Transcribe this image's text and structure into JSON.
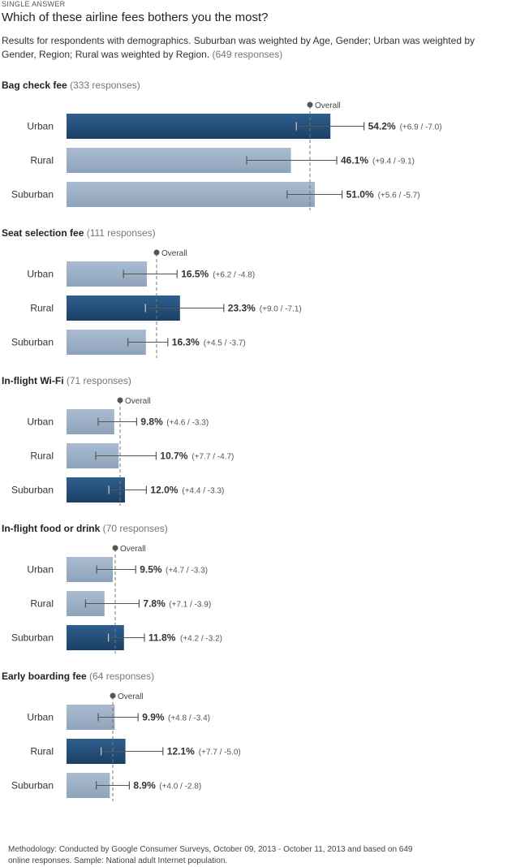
{
  "header": {
    "question_type": "SINGLE ANSWER",
    "question": "Which of these airline fees bothers you the most?",
    "subtitle": "Results for respondents with demographics. Suburban was weighted by Age, Gender; Urban was weighted by Gender, Region; Rural was weighted by Region.",
    "total_responses": "(649 responses)"
  },
  "overall_label": "Overall",
  "chart_data": {
    "type": "bar",
    "orientation": "horizontal",
    "error_bars": true,
    "grid": false,
    "groups": [
      {
        "title": "Bag check fee",
        "responses": "(333 responses)",
        "overall": 50.0,
        "highlight": "Urban",
        "rows": [
          {
            "label": "Urban",
            "value": 54.2,
            "value_text": "54.2%",
            "plus": 6.9,
            "minus": 7.0,
            "err_text": "(+6.9 / -7.0)"
          },
          {
            "label": "Rural",
            "value": 46.1,
            "value_text": "46.1%",
            "plus": 9.4,
            "minus": 9.1,
            "err_text": "(+9.4 / -9.1)"
          },
          {
            "label": "Suburban",
            "value": 51.0,
            "value_text": "51.0%",
            "plus": 5.6,
            "minus": 5.7,
            "err_text": "(+5.6 / -5.7)"
          }
        ]
      },
      {
        "title": "Seat selection fee",
        "responses": "(111 responses)",
        "overall": 18.5,
        "highlight": "Rural",
        "rows": [
          {
            "label": "Urban",
            "value": 16.5,
            "value_text": "16.5%",
            "plus": 6.2,
            "minus": 4.8,
            "err_text": "(+6.2 / -4.8)"
          },
          {
            "label": "Rural",
            "value": 23.3,
            "value_text": "23.3%",
            "plus": 9.0,
            "minus": 7.1,
            "err_text": "(+9.0 / -7.1)"
          },
          {
            "label": "Suburban",
            "value": 16.3,
            "value_text": "16.3%",
            "plus": 4.5,
            "minus": 3.7,
            "err_text": "(+4.5 / -3.7)"
          }
        ]
      },
      {
        "title": "In-flight Wi-Fi",
        "responses": "(71 responses)",
        "overall": 11.0,
        "highlight": "Suburban",
        "rows": [
          {
            "label": "Urban",
            "value": 9.8,
            "value_text": "9.8%",
            "plus": 4.6,
            "minus": 3.3,
            "err_text": "(+4.6 / -3.3)"
          },
          {
            "label": "Rural",
            "value": 10.7,
            "value_text": "10.7%",
            "plus": 7.7,
            "minus": 4.7,
            "err_text": "(+7.7 / -4.7)"
          },
          {
            "label": "Suburban",
            "value": 12.0,
            "value_text": "12.0%",
            "plus": 4.4,
            "minus": 3.3,
            "err_text": "(+4.4 / -3.3)"
          }
        ]
      },
      {
        "title": "In-flight food or drink",
        "responses": "(70 responses)",
        "overall": 10.0,
        "highlight": "Suburban",
        "rows": [
          {
            "label": "Urban",
            "value": 9.5,
            "value_text": "9.5%",
            "plus": 4.7,
            "minus": 3.3,
            "err_text": "(+4.7 / -3.3)"
          },
          {
            "label": "Rural",
            "value": 7.8,
            "value_text": "7.8%",
            "plus": 7.1,
            "minus": 3.9,
            "err_text": "(+7.1 / -3.9)"
          },
          {
            "label": "Suburban",
            "value": 11.8,
            "value_text": "11.8%",
            "plus": 4.2,
            "minus": 3.2,
            "err_text": "(+4.2 / -3.2)"
          }
        ]
      },
      {
        "title": "Early boarding fee",
        "responses": "(64 responses)",
        "overall": 9.5,
        "highlight": "Rural",
        "rows": [
          {
            "label": "Urban",
            "value": 9.9,
            "value_text": "9.9%",
            "plus": 4.8,
            "minus": 3.4,
            "err_text": "(+4.8 / -3.4)"
          },
          {
            "label": "Rural",
            "value": 12.1,
            "value_text": "12.1%",
            "plus": 7.7,
            "minus": 5.0,
            "err_text": "(+7.7 / -5.0)"
          },
          {
            "label": "Suburban",
            "value": 8.9,
            "value_text": "8.9%",
            "plus": 4.0,
            "minus": 2.8,
            "err_text": "(+4.0 / -2.8)"
          }
        ]
      }
    ]
  },
  "footer": {
    "methodology": "Methodology: Conducted by Google Consumer Surveys, October 09, 2013 - October 11, 2013 and based on 649 online responses. Sample: National adult Internet population."
  },
  "colors": {
    "highlight_bar": "#234d78",
    "normal_bar": "#9aafc5",
    "error_bar": "#555555",
    "overall_line": "#777777"
  }
}
